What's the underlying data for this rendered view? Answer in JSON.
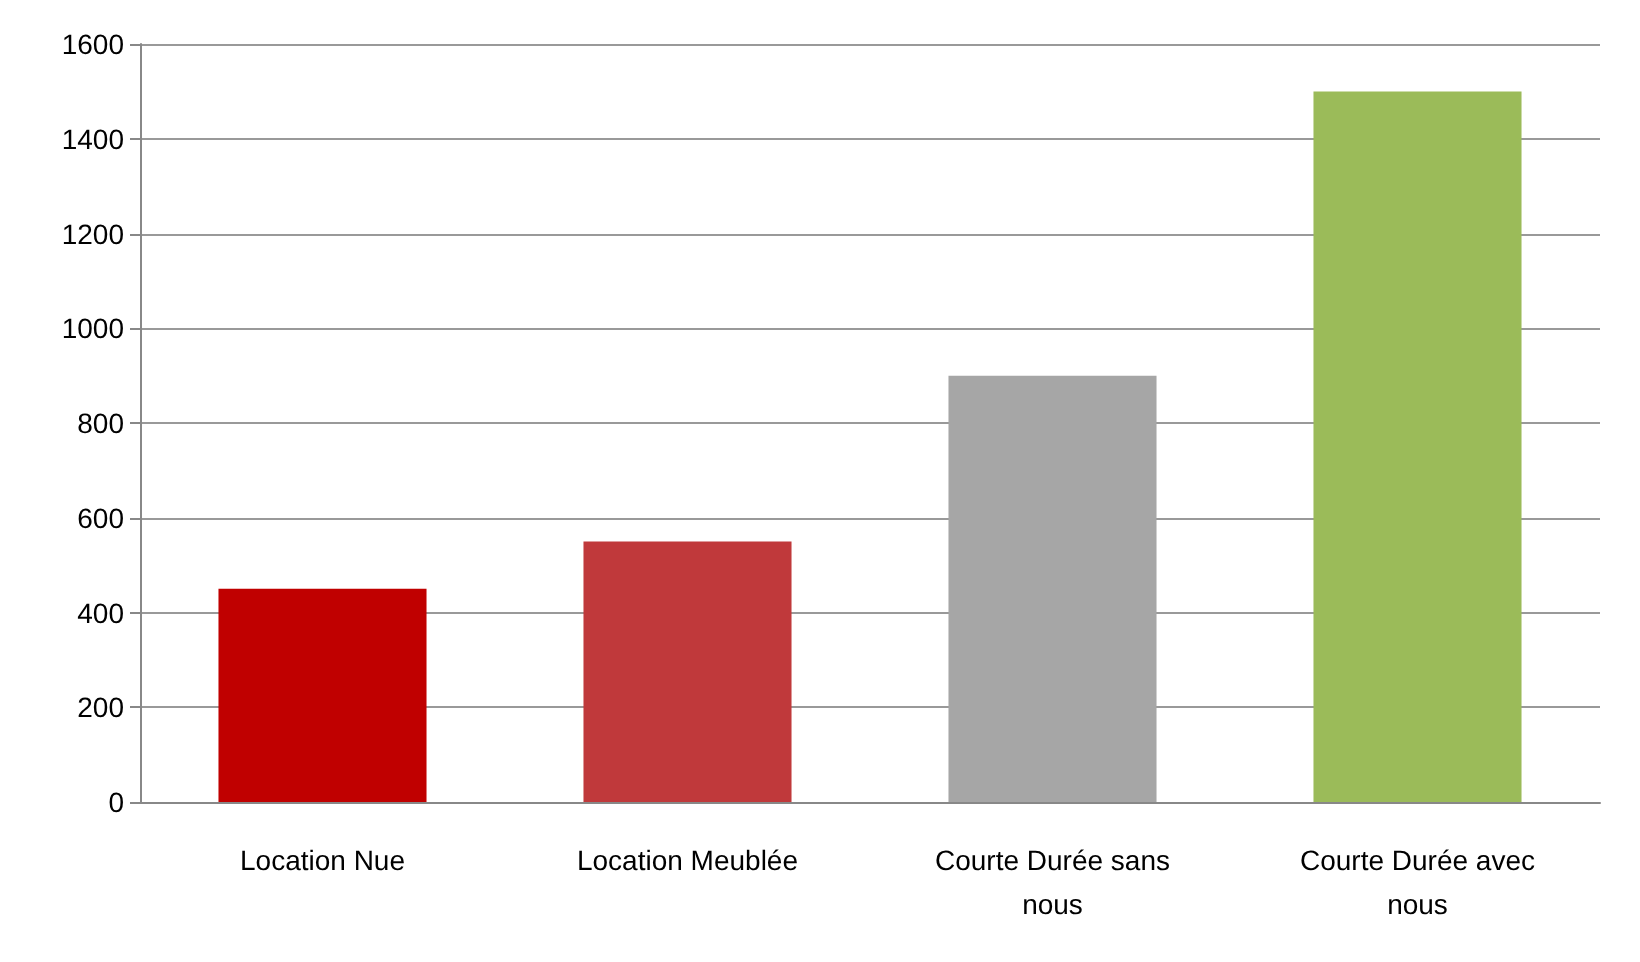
{
  "chart_data": {
    "type": "bar",
    "categories": [
      "Location Nue",
      "Location Meublée",
      "Courte Durée sans nous",
      "Courte Durée avec nous"
    ],
    "values": [
      450,
      550,
      900,
      1500
    ],
    "colors": [
      "#c00000",
      "#c0393b",
      "#a6a6a6",
      "#9bbb59"
    ],
    "ylim": [
      0,
      1600
    ],
    "yticks": [
      0,
      200,
      400,
      600,
      800,
      1000,
      1200,
      1400,
      1600
    ],
    "grid": "y"
  }
}
